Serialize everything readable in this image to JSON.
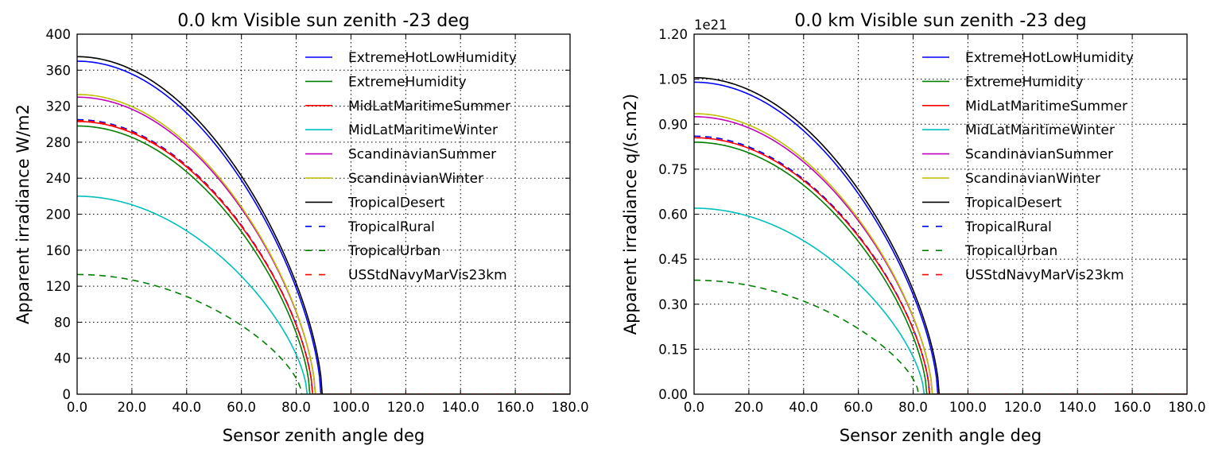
{
  "chart_data": [
    {
      "type": "line",
      "title": "0.0 km Visible sun zenith -23 deg",
      "xlabel": "Sensor zenith angle deg",
      "ylabel": "Apparent irradiance W/m2",
      "xlim": [
        0,
        180
      ],
      "ylim": [
        0,
        400
      ],
      "xticks": [
        "0.0",
        "20.0",
        "40.0",
        "60.0",
        "80.0",
        "100.0",
        "120.0",
        "140.0",
        "160.0",
        "180.0"
      ],
      "yticks": [
        "0",
        "40",
        "80",
        "120",
        "160",
        "200",
        "240",
        "280",
        "320",
        "360",
        "400"
      ],
      "offset_label": "",
      "grid": true,
      "legend_position": "upper-right",
      "series": [
        {
          "name": "ExtremeHotLowHumidity",
          "color": "#0000ff",
          "dash": "solid",
          "y0": 370,
          "cutoff": 89
        },
        {
          "name": "ExtremeHumidity",
          "color": "#008000",
          "dash": "solid",
          "y0": 298,
          "cutoff": 85
        },
        {
          "name": "MidLatMaritimeSummer",
          "color": "#ff0000",
          "dash": "solid",
          "y0": 303,
          "cutoff": 86
        },
        {
          "name": "MidLatMaritimeWinter",
          "color": "#00bfbf",
          "dash": "solid",
          "y0": 220,
          "cutoff": 84
        },
        {
          "name": "ScandinavianSummer",
          "color": "#bf00bf",
          "dash": "solid",
          "y0": 330,
          "cutoff": 87
        },
        {
          "name": "ScandinavianWinter",
          "color": "#bfbf00",
          "dash": "solid",
          "y0": 333,
          "cutoff": 87
        },
        {
          "name": "TropicalDesert",
          "color": "#000000",
          "dash": "solid",
          "y0": 375,
          "cutoff": 89.5
        },
        {
          "name": "TropicalRural",
          "color": "#0000ff",
          "dash": "dashed",
          "y0": 305,
          "cutoff": 86
        },
        {
          "name": "TropicalUrban",
          "color": "#008000",
          "dash": "dashed",
          "y0": 133,
          "cutoff": 82
        },
        {
          "name": "USStdNavyMarVis23km",
          "color": "#ff0000",
          "dash": "dashed",
          "y0": 304,
          "cutoff": 86
        }
      ]
    },
    {
      "type": "line",
      "title": "0.0 km Visible sun zenith -23 deg",
      "xlabel": "Sensor zenith angle deg",
      "ylabel": "Apparent irradiance q/(s.m2)",
      "xlim": [
        0,
        180
      ],
      "ylim": [
        0,
        1.2
      ],
      "xticks": [
        "0.0",
        "20.0",
        "40.0",
        "60.0",
        "80.0",
        "100.0",
        "120.0",
        "140.0",
        "160.0",
        "180.0"
      ],
      "yticks": [
        "0.00",
        "0.15",
        "0.30",
        "0.45",
        "0.60",
        "0.75",
        "0.90",
        "1.05",
        "1.20"
      ],
      "offset_label": "1e21",
      "grid": true,
      "legend_position": "upper-right",
      "series": [
        {
          "name": "ExtremeHotLowHumidity",
          "color": "#0000ff",
          "dash": "solid",
          "y0": 1.04,
          "cutoff": 89
        },
        {
          "name": "ExtremeHumidity",
          "color": "#008000",
          "dash": "solid",
          "y0": 0.84,
          "cutoff": 85
        },
        {
          "name": "MidLatMaritimeSummer",
          "color": "#ff0000",
          "dash": "solid",
          "y0": 0.855,
          "cutoff": 86
        },
        {
          "name": "MidLatMaritimeWinter",
          "color": "#00bfbf",
          "dash": "solid",
          "y0": 0.62,
          "cutoff": 84
        },
        {
          "name": "ScandinavianSummer",
          "color": "#bf00bf",
          "dash": "solid",
          "y0": 0.925,
          "cutoff": 87
        },
        {
          "name": "ScandinavianWinter",
          "color": "#bfbf00",
          "dash": "solid",
          "y0": 0.935,
          "cutoff": 87
        },
        {
          "name": "TropicalDesert",
          "color": "#000000",
          "dash": "solid",
          "y0": 1.055,
          "cutoff": 89.5
        },
        {
          "name": "TropicalRural",
          "color": "#0000ff",
          "dash": "dashed",
          "y0": 0.86,
          "cutoff": 86
        },
        {
          "name": "TropicalUrban",
          "color": "#008000",
          "dash": "dashed",
          "y0": 0.38,
          "cutoff": 82
        },
        {
          "name": "USStdNavyMarVis23km",
          "color": "#ff0000",
          "dash": "dashed",
          "y0": 0.855,
          "cutoff": 86
        }
      ]
    }
  ]
}
